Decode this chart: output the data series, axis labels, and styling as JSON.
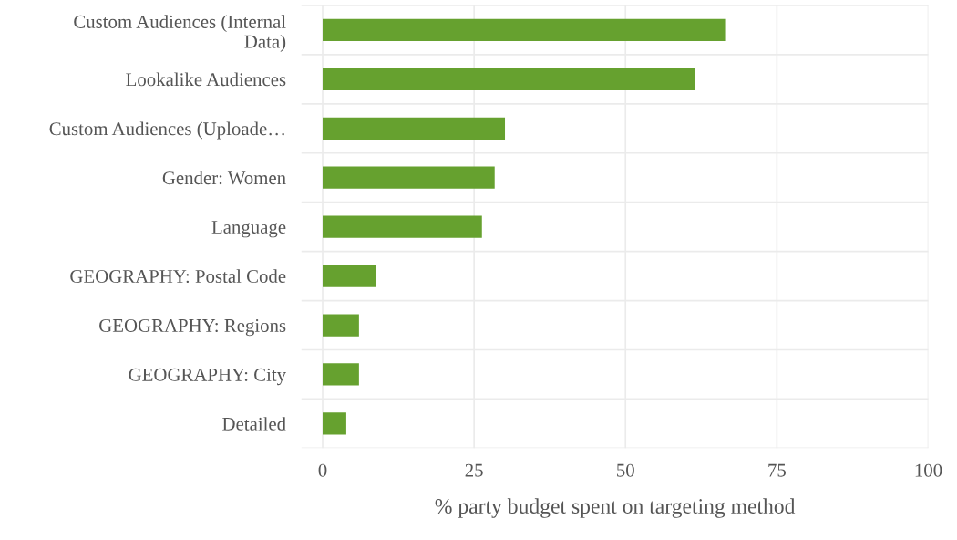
{
  "chart_data": {
    "type": "bar",
    "orientation": "horizontal",
    "xlabel": "% party budget spent on targeting method",
    "categories": [
      "Custom Audiences (Internal\nData)",
      "Lookalike Audiences",
      "Custom Audiences (Uploade…",
      "Gender: Women",
      "Language",
      "GEOGRAPHY: Postal Code",
      "GEOGRAPHY: Regions",
      "GEOGRAPHY: City",
      "Detailed"
    ],
    "values": [
      66.6,
      61.5,
      30.1,
      28.4,
      26.3,
      8.8,
      6.0,
      6.0,
      3.9
    ],
    "color": "#66a12f",
    "xlim": [
      -3.5,
      100
    ],
    "xticks": [
      0,
      25,
      50,
      75,
      100
    ],
    "grid": true
  }
}
